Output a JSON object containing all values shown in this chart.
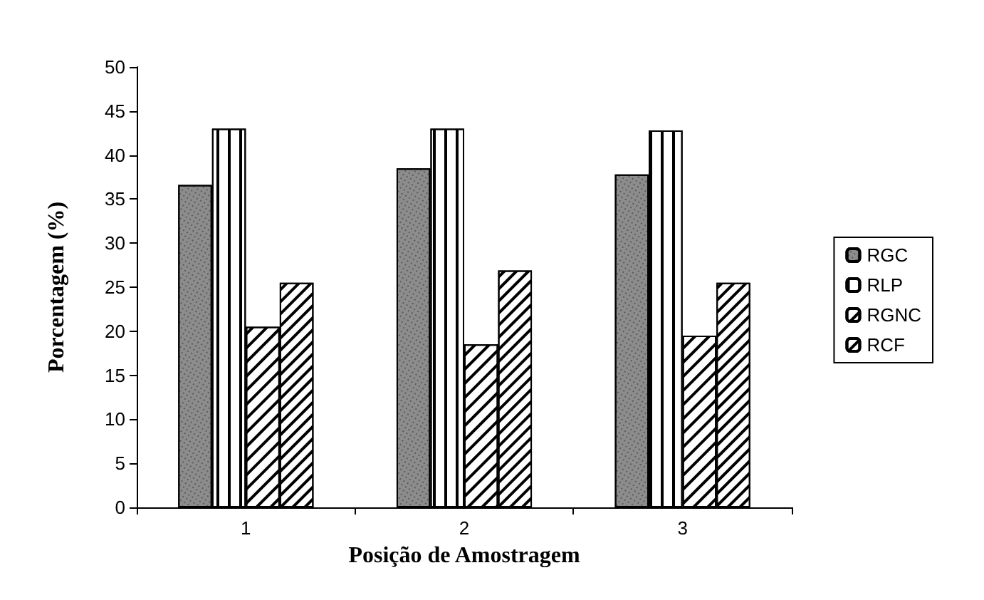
{
  "chart_data": {
    "type": "bar",
    "xlabel": "Posição de Amostragem",
    "ylabel": "Porcentagem (%)",
    "categories": [
      "1",
      "2",
      "3"
    ],
    "series": [
      {
        "name": "RGC",
        "color": "#8c8c8c",
        "values": [
          36.6,
          38.5,
          37.8
        ]
      },
      {
        "name": "RLP",
        "color": "#ffffff",
        "values": [
          43.0,
          43.0,
          42.8
        ]
      },
      {
        "name": "RGNC",
        "color": "#ffffff",
        "values": [
          20.5,
          18.5,
          19.5
        ]
      },
      {
        "name": "RCF",
        "color": "#ffffff",
        "values": [
          25.5,
          26.9,
          25.5
        ]
      }
    ],
    "ylim": [
      0,
      50
    ],
    "yticks": [
      0,
      5,
      10,
      15,
      20,
      25,
      30,
      35,
      40,
      45,
      50
    ],
    "grid": false,
    "legend": "right"
  }
}
